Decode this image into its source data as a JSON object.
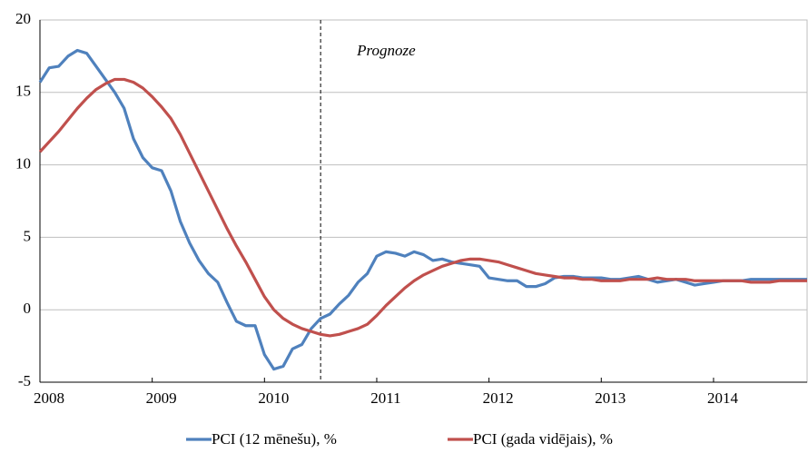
{
  "chart_data": {
    "type": "line",
    "categories": [
      "2008",
      null,
      null,
      null,
      null,
      null,
      null,
      null,
      null,
      null,
      null,
      null,
      "2009",
      null,
      null,
      null,
      null,
      null,
      null,
      null,
      null,
      null,
      null,
      null,
      "2010",
      null,
      null,
      null,
      null,
      null,
      null,
      null,
      null,
      null,
      null,
      null,
      "2011",
      null,
      null,
      null,
      null,
      null,
      null,
      null,
      null,
      null,
      null,
      null,
      "2012",
      null,
      null,
      null,
      null,
      null,
      null,
      null,
      null,
      null,
      null,
      null,
      "2013",
      null,
      null,
      null,
      null,
      null,
      null,
      null,
      null,
      null,
      null,
      null,
      "2014",
      null,
      null,
      null,
      null,
      null,
      null,
      null,
      null,
      null,
      null
    ],
    "series": [
      {
        "name": "PCI (12 mēnešu), %",
        "color": "#4f81bd",
        "values": [
          15.7,
          16.7,
          16.8,
          17.5,
          17.9,
          17.7,
          16.8,
          15.9,
          15.0,
          13.9,
          11.8,
          10.5,
          9.8,
          9.6,
          8.2,
          6.1,
          4.6,
          3.4,
          2.5,
          1.9,
          0.5,
          -0.8,
          -1.1,
          -1.1,
          -3.1,
          -4.1,
          -3.9,
          -2.7,
          -2.4,
          -1.3,
          -0.6,
          -0.3,
          0.4,
          1.0,
          1.9,
          2.5,
          3.7,
          4.0,
          3.9,
          3.7,
          4.0,
          3.8,
          3.4,
          3.5,
          3.3,
          3.2,
          3.1,
          3.0,
          2.2,
          2.1,
          2.0,
          2.0,
          1.6,
          1.6,
          1.8,
          2.2,
          2.3,
          2.3,
          2.2,
          2.2,
          2.2,
          2.1,
          2.1,
          2.2,
          2.3,
          2.1,
          1.9,
          2.0,
          2.1,
          1.9,
          1.7,
          1.8,
          1.9,
          2.0,
          2.0,
          2.0,
          2.1,
          2.1,
          2.1,
          2.1,
          2.1,
          2.1,
          2.1
        ]
      },
      {
        "name": "PCI (gada vidējais), %",
        "color": "#c0504d",
        "values": [
          10.9,
          11.6,
          12.3,
          13.1,
          13.9,
          14.6,
          15.2,
          15.6,
          15.9,
          15.9,
          15.7,
          15.3,
          14.7,
          14.0,
          13.2,
          12.1,
          10.8,
          9.5,
          8.2,
          6.9,
          5.6,
          4.4,
          3.3,
          2.1,
          0.9,
          0.0,
          -0.6,
          -1.0,
          -1.3,
          -1.5,
          -1.7,
          -1.8,
          -1.7,
          -1.5,
          -1.3,
          -1.0,
          -0.4,
          0.3,
          0.9,
          1.5,
          2.0,
          2.4,
          2.7,
          3.0,
          3.2,
          3.4,
          3.5,
          3.5,
          3.4,
          3.3,
          3.1,
          2.9,
          2.7,
          2.5,
          2.4,
          2.3,
          2.2,
          2.2,
          2.1,
          2.1,
          2.0,
          2.0,
          2.0,
          2.1,
          2.1,
          2.1,
          2.2,
          2.1,
          2.1,
          2.1,
          2.0,
          2.0,
          2.0,
          2.0,
          2.0,
          2.0,
          1.9,
          1.9,
          1.9,
          2.0,
          2.0,
          2.0,
          2.0
        ]
      }
    ],
    "ylim": [
      -5,
      20
    ],
    "yticks": [
      -5,
      0,
      5,
      10,
      15,
      20
    ],
    "grid": true,
    "legend": "bottom",
    "annotations": [
      {
        "text": "Prognoze",
        "x_index": 30
      }
    ]
  }
}
